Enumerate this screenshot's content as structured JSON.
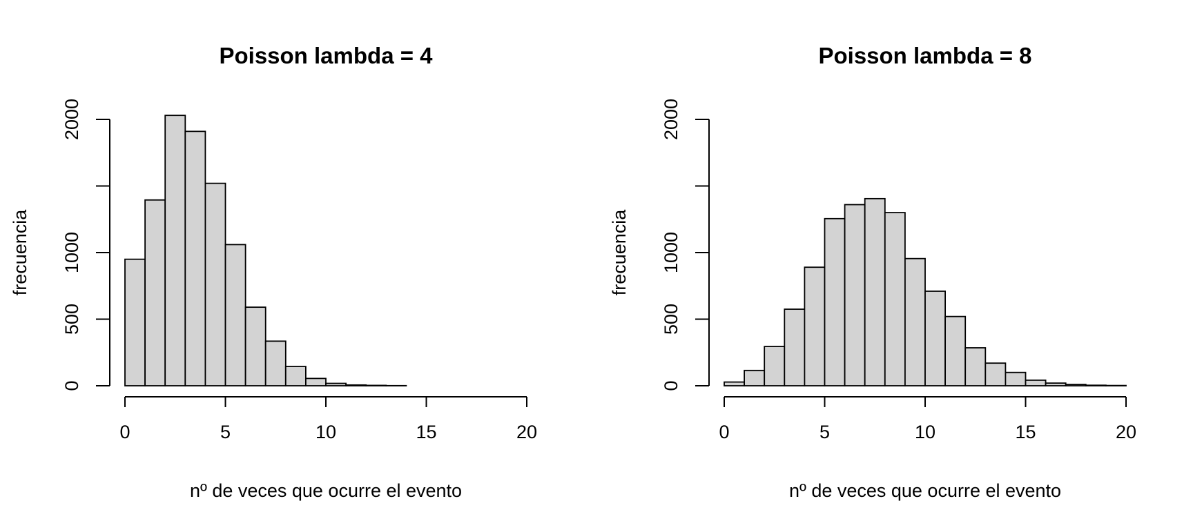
{
  "chart_data": [
    {
      "type": "bar",
      "title": "Poisson lambda = 4",
      "xlabel": "nº de veces que ocurre el evento",
      "ylabel": "frecuencia",
      "xlim": [
        0,
        20
      ],
      "ylim": [
        0,
        2000
      ],
      "x_ticks": [
        0,
        5,
        10,
        15,
        20
      ],
      "y_ticks": [
        0,
        500,
        1000,
        1500,
        2000
      ],
      "y_tick_labels": [
        "0",
        "500",
        "1000",
        "",
        "2000"
      ],
      "bins": [
        [
          0,
          1
        ],
        [
          1,
          2
        ],
        [
          2,
          3
        ],
        [
          3,
          4
        ],
        [
          4,
          5
        ],
        [
          5,
          6
        ],
        [
          6,
          7
        ],
        [
          7,
          8
        ],
        [
          8,
          9
        ],
        [
          9,
          10
        ],
        [
          10,
          11
        ],
        [
          11,
          12
        ],
        [
          12,
          13
        ],
        [
          13,
          14
        ]
      ],
      "values": [
        950,
        1395,
        2030,
        1910,
        1520,
        1060,
        590,
        335,
        145,
        55,
        18,
        6,
        3,
        1
      ],
      "bar_color": "#d3d3d3"
    },
    {
      "type": "bar",
      "title": "Poisson lambda = 8",
      "xlabel": "nº de veces que ocurre el evento",
      "ylabel": "frecuencia",
      "xlim": [
        0,
        20
      ],
      "ylim": [
        0,
        2000
      ],
      "x_ticks": [
        0,
        5,
        10,
        15,
        20
      ],
      "y_ticks": [
        0,
        500,
        1000,
        1500,
        2000
      ],
      "y_tick_labels": [
        "0",
        "500",
        "1000",
        "",
        "2000"
      ],
      "bins": [
        [
          0,
          1
        ],
        [
          1,
          2
        ],
        [
          2,
          3
        ],
        [
          3,
          4
        ],
        [
          4,
          5
        ],
        [
          5,
          6
        ],
        [
          6,
          7
        ],
        [
          7,
          8
        ],
        [
          8,
          9
        ],
        [
          9,
          10
        ],
        [
          10,
          11
        ],
        [
          11,
          12
        ],
        [
          12,
          13
        ],
        [
          13,
          14
        ],
        [
          14,
          15
        ],
        [
          15,
          16
        ],
        [
          16,
          17
        ],
        [
          17,
          18
        ],
        [
          18,
          19
        ],
        [
          19,
          20
        ]
      ],
      "values": [
        28,
        115,
        295,
        575,
        890,
        1255,
        1360,
        1405,
        1300,
        955,
        710,
        520,
        285,
        170,
        100,
        42,
        20,
        10,
        4,
        2
      ],
      "bar_color": "#d3d3d3"
    }
  ]
}
